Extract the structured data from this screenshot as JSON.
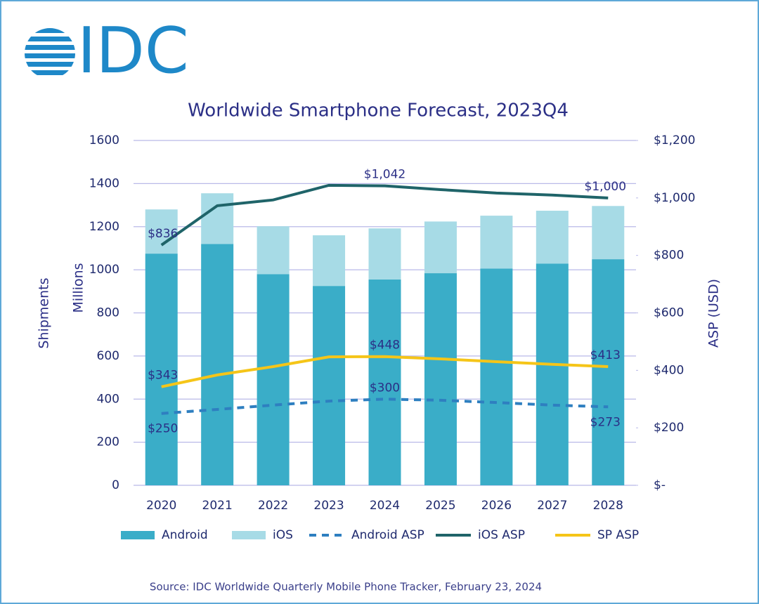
{
  "logo": "IDC",
  "chart_data": {
    "type": "bar",
    "stacked": true,
    "title": "Worldwide Smartphone Forecast, 2023Q4",
    "y_label": [
      "Shipments",
      "Millions"
    ],
    "y2_label": "ASP (USD)",
    "source": "Source:  IDC Worldwide Quarterly Mobile Phone Tracker, February 23, 2024",
    "categories": [
      "2020",
      "2021",
      "2022",
      "2023",
      "2024",
      "2025",
      "2026",
      "2027",
      "2028"
    ],
    "ylim": [
      0,
      1600
    ],
    "yticks": [
      0,
      200,
      400,
      600,
      800,
      1000,
      1200,
      1400,
      1600
    ],
    "y2lim": [
      0,
      1200
    ],
    "y2ticks": [
      {
        "value": 0,
        "label": "$-"
      },
      {
        "value": 200,
        "label": "$200"
      },
      {
        "value": 400,
        "label": "$400"
      },
      {
        "value": 600,
        "label": "$600"
      },
      {
        "value": 800,
        "label": "$800"
      },
      {
        "value": 1000,
        "label": "$1,000"
      },
      {
        "value": 1200,
        "label": "$1,200"
      }
    ],
    "grid": true,
    "legend": "bottom",
    "series": [
      {
        "name": "Android",
        "type": "bar",
        "color": "#3aadc8",
        "values": [
          1075,
          1120,
          980,
          925,
          955,
          984,
          1006,
          1029,
          1049
        ]
      },
      {
        "name": "iOS",
        "type": "bar",
        "color": "#a7dbe6",
        "values": [
          205,
          235,
          222,
          235,
          237,
          240,
          245,
          245,
          247
        ]
      },
      {
        "name": "Android ASP",
        "type": "line",
        "axis": "y2",
        "dashed": true,
        "color": "#2e7fc0",
        "values": [
          250,
          264,
          279,
          293,
          300,
          296,
          288,
          279,
          273
        ],
        "value_labels": [
          "$250",
          null,
          null,
          null,
          "$300",
          null,
          null,
          null,
          "$273"
        ]
      },
      {
        "name": "iOS ASP",
        "type": "line",
        "axis": "y2",
        "dashed": false,
        "color": "#1f6469",
        "values": [
          836,
          973,
          993,
          1044,
          1042,
          1029,
          1017,
          1010,
          1000
        ],
        "value_labels": [
          "$836",
          null,
          null,
          null,
          "$1,042",
          null,
          null,
          null,
          "$1,000"
        ]
      },
      {
        "name": "SP ASP",
        "type": "line",
        "axis": "y2",
        "dashed": false,
        "color": "#f5c518",
        "values": [
          343,
          384,
          413,
          447,
          448,
          440,
          430,
          421,
          413
        ],
        "value_labels": [
          "$343",
          null,
          null,
          null,
          "$448",
          null,
          null,
          null,
          "$413"
        ]
      }
    ]
  }
}
